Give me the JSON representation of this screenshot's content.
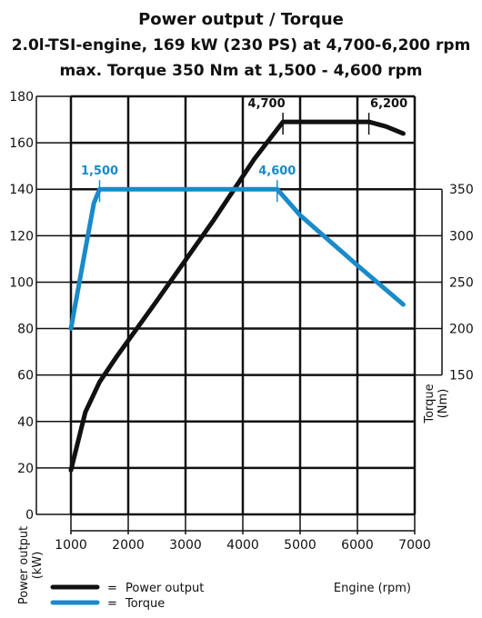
{
  "chart_data": {
    "type": "line",
    "title": "Power output / Torque",
    "subtitle_1": "2.0l-TSI-engine, 169 kW (230 PS) at 4,700-6,200 rpm",
    "subtitle_2": "max. Torque 350 Nm at 1,500 - 4,600 rpm",
    "xlabel": "Engine (rpm)",
    "ylabel_left": "Power output\n(kW)",
    "ylabel_right": "Torque\n(Nm)",
    "xlim": [
      1000,
      7000
    ],
    "ylim_left": [
      0,
      180
    ],
    "ylim_right": [
      150,
      350
    ],
    "x_ticks": [
      1000,
      2000,
      3000,
      4000,
      5000,
      6000,
      7000
    ],
    "y_ticks_left": [
      0,
      20,
      40,
      60,
      80,
      100,
      120,
      140,
      160,
      180
    ],
    "y_ticks_right": [
      150,
      200,
      250,
      300,
      350
    ],
    "grid": true,
    "legend": "bottom",
    "series": [
      {
        "name": "Power output",
        "axis": "left",
        "color": "#111111",
        "x": [
          1000,
          1250,
          1500,
          1800,
          2500,
          3500,
          4200,
          4700,
          5500,
          6200,
          6500,
          6800
        ],
        "y": [
          19,
          44,
          57,
          68,
          92,
          127,
          153,
          169,
          169,
          169,
          167,
          164
        ]
      },
      {
        "name": "Torque",
        "axis": "right",
        "color": "#1a8ac9",
        "x": [
          1000,
          1250,
          1400,
          1500,
          4600,
          5000,
          6000,
          6800
        ],
        "y": [
          200,
          285,
          335,
          350,
          350,
          322,
          268,
          226
        ]
      }
    ],
    "annotations": [
      {
        "text": "4,700",
        "x": 4700,
        "series": "Power output",
        "color": "#111111"
      },
      {
        "text": "6,200",
        "x": 6200,
        "series": "Power output",
        "color": "#111111"
      },
      {
        "text": "1,500",
        "x": 1500,
        "series": "Torque",
        "color": "#1a8ac9"
      },
      {
        "text": "4,600",
        "x": 4600,
        "series": "Torque",
        "color": "#1a8ac9"
      }
    ],
    "legend_entries": [
      {
        "symbol": "=",
        "label": "Power output",
        "color": "#111111"
      },
      {
        "symbol": "=",
        "label": "Torque",
        "color": "#1a8ac9"
      }
    ]
  }
}
